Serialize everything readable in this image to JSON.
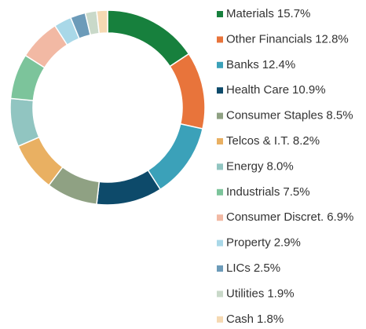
{
  "chart_data": {
    "type": "donut",
    "categories": [
      "Materials",
      "Other Financials",
      "Banks",
      "Health Care",
      "Consumer Staples",
      "Telcos & I.T.",
      "Energy",
      "Industrials",
      "Consumer Discret.",
      "Property",
      "LICs",
      "Utilities",
      "Cash"
    ],
    "values": [
      15.7,
      12.8,
      12.4,
      10.9,
      8.5,
      8.2,
      8.0,
      7.5,
      6.9,
      2.9,
      2.5,
      1.9,
      1.8
    ],
    "value_labels": [
      "15.7%",
      "12.8%",
      "12.4%",
      "10.9%",
      "8.5%",
      "8.2%",
      "8.0%",
      "7.5%",
      "6.9%",
      "2.9%",
      "2.5%",
      "1.9%",
      "1.8%"
    ],
    "colors": [
      "#17803d",
      "#e8743b",
      "#3ba1b9",
      "#0d4a6a",
      "#8fa183",
      "#e9b062",
      "#91c5c1",
      "#7cc49b",
      "#f2b9a4",
      "#a9d8e8",
      "#6c9bb9",
      "#c9d9c9",
      "#f5d9b2"
    ],
    "legend": "right"
  }
}
